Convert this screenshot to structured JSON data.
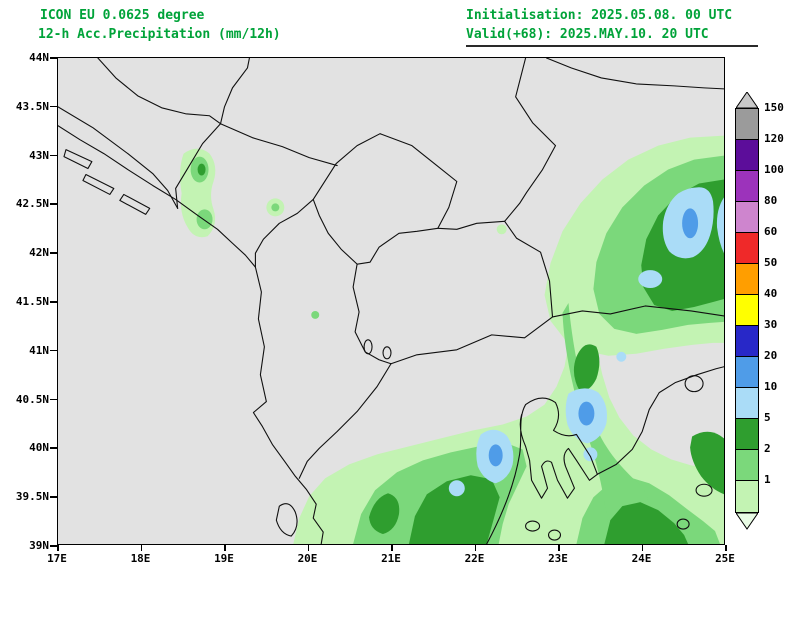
{
  "header": {
    "model_line": "ICON EU 0.0625 degree",
    "product_line": "12-h Acc.Precipitation (mm/12h)",
    "init_line": "Initialisation: 2025.05.08. 00 UTC",
    "valid_line": "Valid(+68): 2025.MAY.10. 20 UTC",
    "text_color": "#00a339"
  },
  "map": {
    "background": "#e2e2e2",
    "border_color": "#000000",
    "lat_labels": [
      "44N",
      "43.5N",
      "43N",
      "42.5N",
      "42N",
      "41.5N",
      "41N",
      "40.5N",
      "40N",
      "39.5N",
      "39N"
    ],
    "lon_labels": [
      "17E",
      "18E",
      "19E",
      "20E",
      "21E",
      "22E",
      "23E",
      "24E",
      "25E"
    ]
  },
  "legend": {
    "unit": "mm/12h",
    "arrow_top_color": "#c8c8c8",
    "arrow_bottom_color": "#e9fce5",
    "cells": [
      {
        "label": "150",
        "color": "#9b9b9b"
      },
      {
        "label": "120",
        "color": "#5c0d9a"
      },
      {
        "label": "100",
        "color": "#9c33bb"
      },
      {
        "label": "80",
        "color": "#ce85ce"
      },
      {
        "label": "60",
        "color": "#ef2929"
      },
      {
        "label": "50",
        "color": "#ff9e00"
      },
      {
        "label": "40",
        "color": "#ffff00"
      },
      {
        "label": "30",
        "color": "#2828c8"
      },
      {
        "label": "20",
        "color": "#4f9ce8"
      },
      {
        "label": "10",
        "color": "#aadcf7"
      },
      {
        "label": "5",
        "color": "#2f9e2f"
      },
      {
        "label": "2",
        "color": "#7bd87b"
      },
      {
        "label": "1",
        "color": "#c3f3b3"
      }
    ]
  },
  "chart_data": {
    "type": "heatmap",
    "title": "12-h Acc.Precipitation (mm/12h)",
    "x_range": [
      "17E",
      "25E"
    ],
    "y_range": [
      "39N",
      "44N"
    ],
    "levels_mm": [
      1,
      2,
      5,
      10,
      20,
      30,
      40,
      50,
      60,
      80,
      100,
      120,
      150
    ],
    "regions": [
      {
        "area": "northeast sector, approx 22.5E-25E / 41.5N-43.5N",
        "band_mm": "1-10 widespread, local 5-10 cores with 10-20 patches"
      },
      {
        "area": "southern band, approx 20E-25E / 39N-40.5N",
        "band_mm": "1-10 widespread, local 5-10 patches and 10-20 cores"
      },
      {
        "area": "narrow connecting band near 23E / 40.5N-42N",
        "band_mm": "1-5"
      },
      {
        "area": "Adriatic coast near 19.5E / 42.2N-42.7N",
        "band_mm": "1-5"
      }
    ]
  }
}
